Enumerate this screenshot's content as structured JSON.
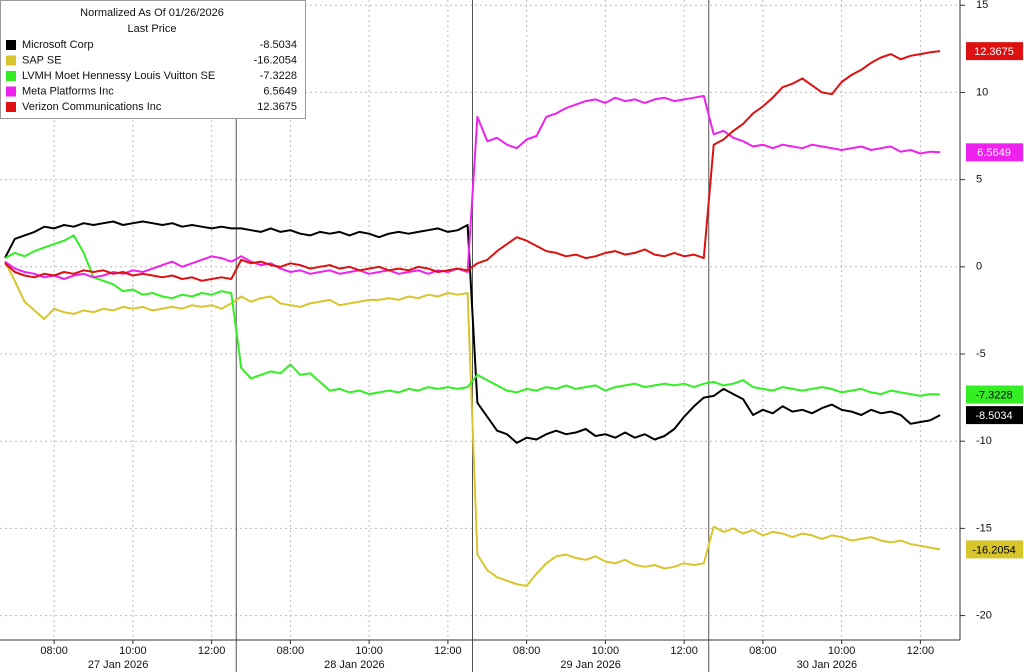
{
  "chart_data": {
    "type": "line",
    "legend_title": "Normalized As Of 01/26/2026",
    "legend_subtitle": "Last Price",
    "legend": "upper left",
    "grid": true,
    "x_groups": [
      "27 Jan 2026",
      "28 Jan 2026",
      "29 Jan 2026",
      "30 Jan 2026"
    ],
    "categories": [
      null,
      null,
      null,
      null,
      null,
      "08:00",
      null,
      null,
      null,
      null,
      null,
      null,
      null,
      "10:00",
      null,
      null,
      null,
      null,
      null,
      null,
      null,
      "12:00",
      null,
      null,
      null,
      null,
      null,
      null,
      null,
      "08:00",
      null,
      null,
      null,
      null,
      null,
      null,
      null,
      "10:00",
      null,
      null,
      null,
      null,
      null,
      null,
      null,
      "12:00",
      null,
      null,
      null,
      null,
      null,
      null,
      null,
      "08:00",
      null,
      null,
      null,
      null,
      null,
      null,
      null,
      "10:00",
      null,
      null,
      null,
      null,
      null,
      null,
      null,
      "12:00",
      null,
      null,
      null,
      null,
      null,
      null,
      null,
      "08:00",
      null,
      null,
      null,
      null,
      null,
      null,
      null,
      "10:00",
      null,
      null,
      null,
      null,
      null,
      null,
      null,
      "12:00",
      null,
      null
    ],
    "ylim": [
      -21.4,
      15.3
    ],
    "yticks": [
      15,
      10,
      5,
      0,
      -5,
      -10,
      -15,
      -20
    ],
    "series": [
      {
        "name": "Microsoft Corp",
        "color": "#000000",
        "last": -8.5034,
        "values": [
          0.5,
          1.6,
          1.8,
          2.0,
          2.3,
          2.2,
          2.4,
          2.3,
          2.5,
          2.4,
          2.5,
          2.6,
          2.4,
          2.5,
          2.6,
          2.5,
          2.4,
          2.5,
          2.3,
          2.4,
          2.3,
          2.2,
          2.3,
          2.2,
          2.2,
          2.1,
          2.0,
          2.2,
          2.0,
          2.1,
          1.9,
          1.8,
          2.0,
          1.9,
          2.0,
          1.8,
          2.0,
          1.9,
          1.7,
          1.9,
          2.0,
          1.9,
          2.0,
          2.1,
          2.2,
          2.0,
          2.1,
          2.4,
          -7.8,
          -8.6,
          -9.4,
          -9.6,
          -10.1,
          -9.8,
          -9.9,
          -9.6,
          -9.4,
          -9.6,
          -9.5,
          -9.3,
          -9.7,
          -9.6,
          -9.8,
          -9.5,
          -9.8,
          -9.6,
          -9.9,
          -9.7,
          -9.3,
          -8.6,
          -8.0,
          -7.5,
          -7.4,
          -7.0,
          -7.3,
          -7.6,
          -8.5,
          -8.2,
          -8.4,
          -8.0,
          -8.3,
          -8.2,
          -8.4,
          -8.1,
          -7.9,
          -8.2,
          -8.3,
          -8.5,
          -8.2,
          -8.4,
          -8.3,
          -8.5,
          -9.0,
          -8.9,
          -8.8,
          -8.5034
        ]
      },
      {
        "name": "SAP SE",
        "color": "#d8c52c",
        "last": -16.2054,
        "values": [
          0.3,
          -0.8,
          -2.0,
          -2.5,
          -3.0,
          -2.4,
          -2.6,
          -2.7,
          -2.5,
          -2.6,
          -2.4,
          -2.5,
          -2.3,
          -2.4,
          -2.3,
          -2.5,
          -2.4,
          -2.3,
          -2.4,
          -2.2,
          -2.3,
          -2.2,
          -2.4,
          -2.1,
          -1.7,
          -2.0,
          -1.8,
          -1.7,
          -2.1,
          -2.2,
          -2.3,
          -2.1,
          -2.0,
          -1.9,
          -2.2,
          -2.1,
          -2.0,
          -1.9,
          -1.9,
          -1.8,
          -1.9,
          -1.7,
          -1.8,
          -1.6,
          -1.7,
          -1.5,
          -1.6,
          -1.5,
          -16.5,
          -17.4,
          -17.8,
          -18.0,
          -18.2,
          -18.3,
          -17.6,
          -17.0,
          -16.6,
          -16.5,
          -16.7,
          -16.8,
          -16.6,
          -16.9,
          -17.0,
          -16.8,
          -17.1,
          -17.2,
          -17.1,
          -17.3,
          -17.2,
          -17.0,
          -17.1,
          -17.0,
          -14.9,
          -15.2,
          -15.0,
          -15.3,
          -15.1,
          -15.4,
          -15.2,
          -15.3,
          -15.5,
          -15.3,
          -15.4,
          -15.6,
          -15.4,
          -15.5,
          -15.7,
          -15.6,
          -15.5,
          -15.7,
          -15.8,
          -15.7,
          -15.9,
          -16.0,
          -16.1,
          -16.2054
        ]
      },
      {
        "name": "LVMH Moet Hennessy Louis Vuitton SE",
        "color": "#33ee22",
        "last": -7.3228,
        "values": [
          0.5,
          0.8,
          0.6,
          0.9,
          1.1,
          1.3,
          1.5,
          1.8,
          0.8,
          -0.6,
          -0.8,
          -1.0,
          -1.4,
          -1.3,
          -1.6,
          -1.5,
          -1.7,
          -1.8,
          -1.6,
          -1.7,
          -1.5,
          -1.6,
          -1.4,
          -1.5,
          -5.8,
          -6.4,
          -6.2,
          -6.0,
          -6.1,
          -5.6,
          -6.2,
          -6.1,
          -6.6,
          -7.1,
          -7.0,
          -7.2,
          -7.1,
          -7.3,
          -7.2,
          -7.1,
          -7.2,
          -7.0,
          -7.1,
          -6.9,
          -7.0,
          -6.9,
          -7.0,
          -6.9,
          -6.2,
          -6.5,
          -6.8,
          -7.1,
          -7.2,
          -7.0,
          -7.1,
          -6.9,
          -7.0,
          -6.8,
          -7.0,
          -6.9,
          -6.8,
          -7.1,
          -6.9,
          -6.8,
          -6.7,
          -6.9,
          -6.8,
          -6.7,
          -6.8,
          -6.7,
          -6.9,
          -6.7,
          -6.6,
          -6.8,
          -6.7,
          -6.5,
          -6.9,
          -7.0,
          -7.1,
          -6.9,
          -7.0,
          -7.1,
          -7.0,
          -6.9,
          -7.0,
          -7.2,
          -7.1,
          -7.0,
          -7.2,
          -7.3,
          -7.1,
          -7.2,
          -7.3,
          -7.4,
          -7.3,
          -7.3228
        ]
      },
      {
        "name": "Meta Platforms Inc",
        "color": "#ee22ee",
        "last": 6.5649,
        "values": [
          0.3,
          -0.1,
          -0.3,
          -0.4,
          -0.6,
          -0.5,
          -0.7,
          -0.5,
          -0.4,
          -0.6,
          -0.5,
          -0.3,
          -0.4,
          -0.2,
          -0.3,
          -0.1,
          0.1,
          0.3,
          0.0,
          0.2,
          0.4,
          0.6,
          0.5,
          0.3,
          0.6,
          0.3,
          0.1,
          0.2,
          -0.1,
          -0.3,
          -0.2,
          -0.4,
          -0.3,
          -0.2,
          -0.4,
          -0.3,
          -0.2,
          -0.4,
          -0.3,
          -0.2,
          -0.4,
          -0.3,
          -0.2,
          -0.4,
          -0.2,
          -0.3,
          -0.1,
          -0.3,
          8.6,
          7.2,
          7.4,
          7.0,
          6.8,
          7.3,
          7.5,
          8.6,
          8.8,
          9.1,
          9.3,
          9.5,
          9.6,
          9.4,
          9.7,
          9.5,
          9.6,
          9.4,
          9.6,
          9.7,
          9.5,
          9.6,
          9.7,
          9.8,
          7.6,
          7.8,
          7.4,
          7.2,
          6.9,
          7.0,
          6.8,
          7.0,
          6.9,
          6.8,
          7.0,
          6.9,
          6.8,
          6.7,
          6.8,
          6.9,
          6.7,
          6.8,
          6.9,
          6.6,
          6.7,
          6.5,
          6.6,
          6.5649
        ]
      },
      {
        "name": "Verizon Communications Inc",
        "color": "#dd1111",
        "last": 12.3675,
        "values": [
          0.2,
          -0.3,
          -0.5,
          -0.6,
          -0.4,
          -0.5,
          -0.3,
          -0.4,
          -0.2,
          -0.3,
          -0.2,
          -0.4,
          -0.3,
          -0.5,
          -0.4,
          -0.5,
          -0.6,
          -0.5,
          -0.7,
          -0.6,
          -0.8,
          -0.7,
          -0.6,
          -0.7,
          0.4,
          0.2,
          0.3,
          0.1,
          0.0,
          0.2,
          0.1,
          -0.1,
          0.0,
          0.1,
          -0.1,
          0.0,
          -0.2,
          -0.1,
          0.0,
          -0.2,
          -0.1,
          -0.2,
          0.0,
          -0.1,
          -0.3,
          -0.2,
          -0.1,
          -0.2,
          0.2,
          0.4,
          0.9,
          1.3,
          1.7,
          1.5,
          1.2,
          0.9,
          0.8,
          0.6,
          0.7,
          0.5,
          0.6,
          0.8,
          0.9,
          0.7,
          0.8,
          1.0,
          0.7,
          0.6,
          0.8,
          0.6,
          0.7,
          0.5,
          7.0,
          7.3,
          7.8,
          8.2,
          8.8,
          9.2,
          9.7,
          10.3,
          10.5,
          10.8,
          10.4,
          10.0,
          9.9,
          10.6,
          11.0,
          11.3,
          11.7,
          12.0,
          12.2,
          11.9,
          12.1,
          12.2,
          12.3,
          12.3675
        ]
      }
    ]
  }
}
